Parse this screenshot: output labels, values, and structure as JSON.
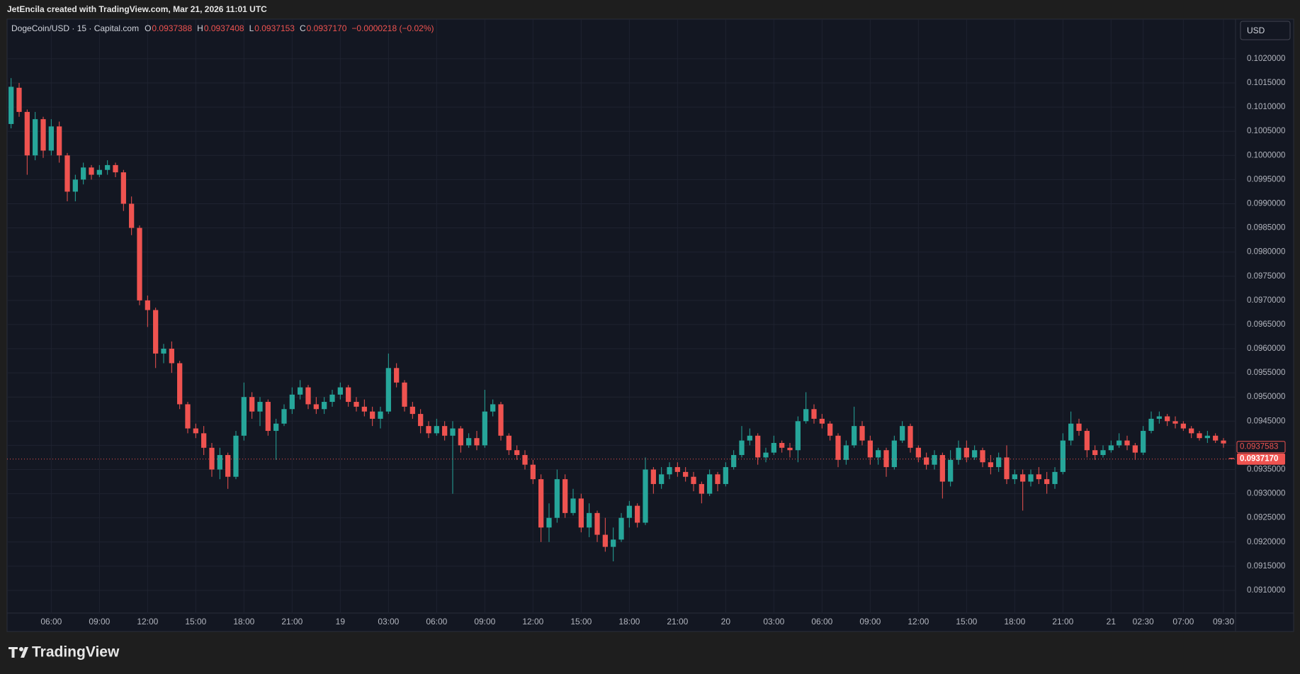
{
  "chart_data": {
    "type": "candlestick",
    "caption": "JetEncila created with TradingView.com, Mar 21, 2026 11:01 UTC",
    "title": "DogeCoin/USD · 15 · Capital.com",
    "legend_keys": [
      "O",
      "H",
      "L",
      "C"
    ],
    "ohlc_labels": [
      "0.0937388",
      "0.0937408",
      "0.0937153",
      "0.0937170"
    ],
    "change": "−0.0000218 (−0.02%)",
    "currency": "USD",
    "brand": "TradingView",
    "price_marker": 0.0937583,
    "up_color": "#26a69a",
    "down_color": "#ef5350",
    "grid": true,
    "ylim": [
      0.09053,
      0.10282
    ],
    "yticks": [
      {
        "value": 0.091,
        "label": "0.0910000"
      },
      {
        "value": 0.0915,
        "label": "0.0915000"
      },
      {
        "value": 0.092,
        "label": "0.0920000"
      },
      {
        "value": 0.0925,
        "label": "0.0925000"
      },
      {
        "value": 0.093,
        "label": "0.0930000"
      },
      {
        "value": 0.0935,
        "label": "0.0935000"
      },
      {
        "value": 0.094,
        "label": "0.0940000"
      },
      {
        "value": 0.0945,
        "label": "0.0945000"
      },
      {
        "value": 0.095,
        "label": "0.0950000"
      },
      {
        "value": 0.0955,
        "label": "0.0955000"
      },
      {
        "value": 0.096,
        "label": "0.0960000"
      },
      {
        "value": 0.0965,
        "label": "0.0965000"
      },
      {
        "value": 0.097,
        "label": "0.0970000"
      },
      {
        "value": 0.0975,
        "label": "0.0975000"
      },
      {
        "value": 0.098,
        "label": "0.0980000"
      },
      {
        "value": 0.0985,
        "label": "0.0985000"
      },
      {
        "value": 0.099,
        "label": "0.0990000"
      },
      {
        "value": 0.0995,
        "label": "0.0995000"
      },
      {
        "value": 0.1,
        "label": "0.1000000"
      },
      {
        "value": 0.1005,
        "label": "0.1005000"
      },
      {
        "value": 0.101,
        "label": "0.1010000"
      },
      {
        "value": 0.1015,
        "label": "0.1015000"
      },
      {
        "value": 0.102,
        "label": "0.1020000"
      }
    ],
    "categories": [
      null,
      null,
      null,
      null,
      null,
      "06:00",
      null,
      null,
      null,
      null,
      null,
      "09:00",
      null,
      null,
      null,
      null,
      null,
      "12:00",
      null,
      null,
      null,
      null,
      null,
      "15:00",
      null,
      null,
      null,
      null,
      null,
      "18:00",
      null,
      null,
      null,
      null,
      null,
      "21:00",
      null,
      null,
      null,
      null,
      null,
      "19",
      null,
      null,
      null,
      null,
      null,
      "03:00",
      null,
      null,
      null,
      null,
      null,
      "06:00",
      null,
      null,
      null,
      null,
      null,
      "09:00",
      null,
      null,
      null,
      null,
      null,
      "12:00",
      null,
      null,
      null,
      null,
      null,
      "15:00",
      null,
      null,
      null,
      null,
      null,
      "18:00",
      null,
      null,
      null,
      null,
      null,
      "21:00",
      null,
      null,
      null,
      null,
      null,
      "20",
      null,
      null,
      null,
      null,
      null,
      "03:00",
      null,
      null,
      null,
      null,
      null,
      "06:00",
      null,
      null,
      null,
      null,
      null,
      "09:00",
      null,
      null,
      null,
      null,
      null,
      "12:00",
      null,
      null,
      null,
      null,
      null,
      "15:00",
      null,
      null,
      null,
      null,
      null,
      "18:00",
      null,
      null,
      null,
      null,
      null,
      "21:00",
      null,
      null,
      null,
      null,
      null,
      "21",
      null,
      null,
      null,
      "02:30",
      null,
      null,
      null,
      null,
      "07:00",
      null,
      null,
      null,
      null,
      "09:30",
      null
    ],
    "candles": [
      [
        0.10065,
        0.1016,
        0.10056,
        0.10142
      ],
      [
        0.1014,
        0.1015,
        0.1008,
        0.1009
      ],
      [
        0.1009,
        0.10095,
        0.0996,
        0.1
      ],
      [
        0.1,
        0.1009,
        0.0999,
        0.10075
      ],
      [
        0.10075,
        0.1008,
        0.09995,
        0.1001
      ],
      [
        0.1001,
        0.10075,
        0.1,
        0.1006
      ],
      [
        0.1006,
        0.1007,
        0.09985,
        0.1
      ],
      [
        0.1,
        0.10005,
        0.09905,
        0.09925
      ],
      [
        0.09925,
        0.0996,
        0.09905,
        0.0995
      ],
      [
        0.0995,
        0.09985,
        0.0994,
        0.09975
      ],
      [
        0.09975,
        0.0998,
        0.0995,
        0.0996
      ],
      [
        0.0996,
        0.0998,
        0.09955,
        0.0997
      ],
      [
        0.0997,
        0.0999,
        0.0996,
        0.0998
      ],
      [
        0.0998,
        0.09985,
        0.09955,
        0.09965
      ],
      [
        0.09965,
        0.0997,
        0.09885,
        0.099
      ],
      [
        0.099,
        0.09915,
        0.09835,
        0.0985
      ],
      [
        0.0985,
        0.09855,
        0.0969,
        0.097
      ],
      [
        0.097,
        0.0971,
        0.09645,
        0.0968
      ],
      [
        0.0968,
        0.09685,
        0.0956,
        0.0959
      ],
      [
        0.0959,
        0.0961,
        0.0957,
        0.096
      ],
      [
        0.096,
        0.09615,
        0.0955,
        0.0957
      ],
      [
        0.0957,
        0.09575,
        0.09475,
        0.09485
      ],
      [
        0.09485,
        0.0949,
        0.09425,
        0.09435
      ],
      [
        0.09435,
        0.09445,
        0.09415,
        0.09425
      ],
      [
        0.09425,
        0.0944,
        0.0938,
        0.09395
      ],
      [
        0.09395,
        0.09405,
        0.09335,
        0.0935
      ],
      [
        0.0935,
        0.09395,
        0.0933,
        0.0938
      ],
      [
        0.0938,
        0.09385,
        0.0931,
        0.09335
      ],
      [
        0.09335,
        0.0943,
        0.0933,
        0.0942
      ],
      [
        0.0942,
        0.0953,
        0.0941,
        0.095
      ],
      [
        0.095,
        0.0951,
        0.09455,
        0.0947
      ],
      [
        0.0947,
        0.095,
        0.0944,
        0.0949
      ],
      [
        0.0949,
        0.09495,
        0.0942,
        0.0943
      ],
      [
        0.0943,
        0.09455,
        0.0937,
        0.09445
      ],
      [
        0.09445,
        0.09485,
        0.0944,
        0.09475
      ],
      [
        0.09475,
        0.0952,
        0.09465,
        0.09505
      ],
      [
        0.09505,
        0.09535,
        0.09495,
        0.0952
      ],
      [
        0.0952,
        0.09525,
        0.09475,
        0.09485
      ],
      [
        0.09485,
        0.095,
        0.09465,
        0.09475
      ],
      [
        0.09475,
        0.095,
        0.09465,
        0.0949
      ],
      [
        0.0949,
        0.09515,
        0.0948,
        0.09505
      ],
      [
        0.09505,
        0.0953,
        0.09495,
        0.0952
      ],
      [
        0.0952,
        0.09525,
        0.0948,
        0.0949
      ],
      [
        0.0949,
        0.095,
        0.0947,
        0.0948
      ],
      [
        0.0948,
        0.09495,
        0.0946,
        0.0947
      ],
      [
        0.0947,
        0.0948,
        0.0944,
        0.09455
      ],
      [
        0.09455,
        0.0948,
        0.09435,
        0.0947
      ],
      [
        0.0947,
        0.0959,
        0.09465,
        0.0956
      ],
      [
        0.0956,
        0.0957,
        0.0952,
        0.0953
      ],
      [
        0.0953,
        0.09535,
        0.0947,
        0.0948
      ],
      [
        0.0948,
        0.0949,
        0.09455,
        0.09465
      ],
      [
        0.09465,
        0.09475,
        0.09425,
        0.0944
      ],
      [
        0.0944,
        0.0945,
        0.09415,
        0.09425
      ],
      [
        0.09425,
        0.09455,
        0.0942,
        0.0944
      ],
      [
        0.0944,
        0.0945,
        0.0941,
        0.0942
      ],
      [
        0.0942,
        0.0945,
        0.093,
        0.09435
      ],
      [
        0.09435,
        0.0944,
        0.09385,
        0.094
      ],
      [
        0.094,
        0.09425,
        0.09395,
        0.09415
      ],
      [
        0.09415,
        0.0943,
        0.0939,
        0.094
      ],
      [
        0.094,
        0.09515,
        0.09395,
        0.0947
      ],
      [
        0.0947,
        0.09495,
        0.0946,
        0.09485
      ],
      [
        0.09485,
        0.0949,
        0.0941,
        0.0942
      ],
      [
        0.0942,
        0.09425,
        0.0938,
        0.0939
      ],
      [
        0.0939,
        0.094,
        0.0937,
        0.0938
      ],
      [
        0.0938,
        0.0939,
        0.0935,
        0.0936
      ],
      [
        0.0936,
        0.0937,
        0.0932,
        0.0933
      ],
      [
        0.0933,
        0.0934,
        0.092,
        0.0923
      ],
      [
        0.0923,
        0.0928,
        0.092,
        0.0925
      ],
      [
        0.0925,
        0.0935,
        0.0924,
        0.0933
      ],
      [
        0.0933,
        0.0934,
        0.0925,
        0.0926
      ],
      [
        0.0926,
        0.0931,
        0.09255,
        0.0929
      ],
      [
        0.0929,
        0.093,
        0.0922,
        0.0923
      ],
      [
        0.0923,
        0.0928,
        0.0921,
        0.0926
      ],
      [
        0.0926,
        0.09265,
        0.092,
        0.09215
      ],
      [
        0.09215,
        0.0925,
        0.0918,
        0.0919
      ],
      [
        0.0919,
        0.0923,
        0.0916,
        0.09205
      ],
      [
        0.09205,
        0.0926,
        0.092,
        0.0925
      ],
      [
        0.0925,
        0.09285,
        0.0923,
        0.09275
      ],
      [
        0.09275,
        0.0928,
        0.0923,
        0.0924
      ],
      [
        0.0924,
        0.09375,
        0.09235,
        0.0935
      ],
      [
        0.0935,
        0.09355,
        0.093,
        0.0932
      ],
      [
        0.0932,
        0.09355,
        0.0931,
        0.0934
      ],
      [
        0.0934,
        0.09365,
        0.0933,
        0.09355
      ],
      [
        0.09355,
        0.09365,
        0.09335,
        0.09345
      ],
      [
        0.09345,
        0.09355,
        0.09325,
        0.09335
      ],
      [
        0.09335,
        0.09345,
        0.09305,
        0.0932
      ],
      [
        0.0932,
        0.09325,
        0.0928,
        0.093
      ],
      [
        0.093,
        0.0935,
        0.09295,
        0.0934
      ],
      [
        0.0934,
        0.09345,
        0.09305,
        0.0932
      ],
      [
        0.0932,
        0.09365,
        0.09315,
        0.09355
      ],
      [
        0.09355,
        0.0939,
        0.0935,
        0.0938
      ],
      [
        0.0938,
        0.0944,
        0.09375,
        0.0941
      ],
      [
        0.0941,
        0.09435,
        0.094,
        0.0942
      ],
      [
        0.0942,
        0.09425,
        0.0936,
        0.09375
      ],
      [
        0.09375,
        0.09395,
        0.09365,
        0.09385
      ],
      [
        0.09385,
        0.0942,
        0.0938,
        0.09405
      ],
      [
        0.09405,
        0.0941,
        0.09385,
        0.09395
      ],
      [
        0.09395,
        0.09405,
        0.09375,
        0.0939
      ],
      [
        0.0939,
        0.0946,
        0.09365,
        0.0945
      ],
      [
        0.0945,
        0.0951,
        0.09445,
        0.09475
      ],
      [
        0.09475,
        0.09485,
        0.09445,
        0.09455
      ],
      [
        0.09455,
        0.09465,
        0.09435,
        0.09445
      ],
      [
        0.09445,
        0.0945,
        0.0941,
        0.0942
      ],
      [
        0.0942,
        0.09425,
        0.09355,
        0.0937
      ],
      [
        0.0937,
        0.0941,
        0.0936,
        0.094
      ],
      [
        0.094,
        0.0948,
        0.09395,
        0.0944
      ],
      [
        0.0944,
        0.0945,
        0.094,
        0.0941
      ],
      [
        0.0941,
        0.0942,
        0.0936,
        0.09375
      ],
      [
        0.09375,
        0.09395,
        0.0936,
        0.0939
      ],
      [
        0.0939,
        0.09395,
        0.09335,
        0.09355
      ],
      [
        0.09355,
        0.0942,
        0.0935,
        0.0941
      ],
      [
        0.0941,
        0.0945,
        0.09405,
        0.0944
      ],
      [
        0.0944,
        0.09445,
        0.09385,
        0.09395
      ],
      [
        0.09395,
        0.094,
        0.09365,
        0.09375
      ],
      [
        0.09375,
        0.09385,
        0.0935,
        0.0936
      ],
      [
        0.0936,
        0.0939,
        0.0935,
        0.0938
      ],
      [
        0.0938,
        0.09385,
        0.0929,
        0.09325
      ],
      [
        0.09325,
        0.0939,
        0.09315,
        0.0937
      ],
      [
        0.0937,
        0.0941,
        0.0936,
        0.09395
      ],
      [
        0.09395,
        0.0941,
        0.09365,
        0.09375
      ],
      [
        0.09375,
        0.094,
        0.0937,
        0.0939
      ],
      [
        0.0939,
        0.09395,
        0.09355,
        0.09365
      ],
      [
        0.09365,
        0.0938,
        0.0934,
        0.09355
      ],
      [
        0.09355,
        0.09385,
        0.09345,
        0.09375
      ],
      [
        0.09375,
        0.094,
        0.0932,
        0.0933
      ],
      [
        0.0933,
        0.0935,
        0.0932,
        0.0934
      ],
      [
        0.0934,
        0.0935,
        0.09265,
        0.09325
      ],
      [
        0.09325,
        0.0935,
        0.09315,
        0.0934
      ],
      [
        0.0934,
        0.09355,
        0.0932,
        0.0933
      ],
      [
        0.0933,
        0.09345,
        0.093,
        0.0932
      ],
      [
        0.0932,
        0.09355,
        0.0931,
        0.09345
      ],
      [
        0.09345,
        0.09425,
        0.0934,
        0.0941
      ],
      [
        0.0941,
        0.0947,
        0.094,
        0.09445
      ],
      [
        0.09445,
        0.09455,
        0.0942,
        0.0943
      ],
      [
        0.0943,
        0.09435,
        0.09375,
        0.0939
      ],
      [
        0.0939,
        0.094,
        0.0937,
        0.0938
      ],
      [
        0.0938,
        0.094,
        0.09375,
        0.0939
      ],
      [
        0.0939,
        0.0941,
        0.09385,
        0.094
      ],
      [
        0.094,
        0.09425,
        0.09395,
        0.0941
      ],
      [
        0.0941,
        0.0942,
        0.0939,
        0.094
      ],
      [
        0.094,
        0.09405,
        0.0937,
        0.09385
      ],
      [
        0.09385,
        0.0944,
        0.0938,
        0.0943
      ],
      [
        0.0943,
        0.0947,
        0.09425,
        0.09455
      ],
      [
        0.09455,
        0.0947,
        0.09445,
        0.0946
      ],
      [
        0.0946,
        0.09465,
        0.0944,
        0.0945
      ],
      [
        0.0945,
        0.0946,
        0.09435,
        0.09445
      ],
      [
        0.09445,
        0.0945,
        0.0943,
        0.09435
      ],
      [
        0.09435,
        0.0944,
        0.09415,
        0.09425
      ],
      [
        0.09425,
        0.0943,
        0.0941,
        0.09415
      ],
      [
        0.09415,
        0.0943,
        0.09405,
        0.0942
      ],
      [
        0.0942,
        0.09425,
        0.09405,
        0.0941
      ],
      [
        0.0941,
        0.09415,
        0.09395,
        0.09404
      ],
      [
        0.0937388,
        0.0937408,
        0.0937153,
        0.093717
      ]
    ]
  }
}
